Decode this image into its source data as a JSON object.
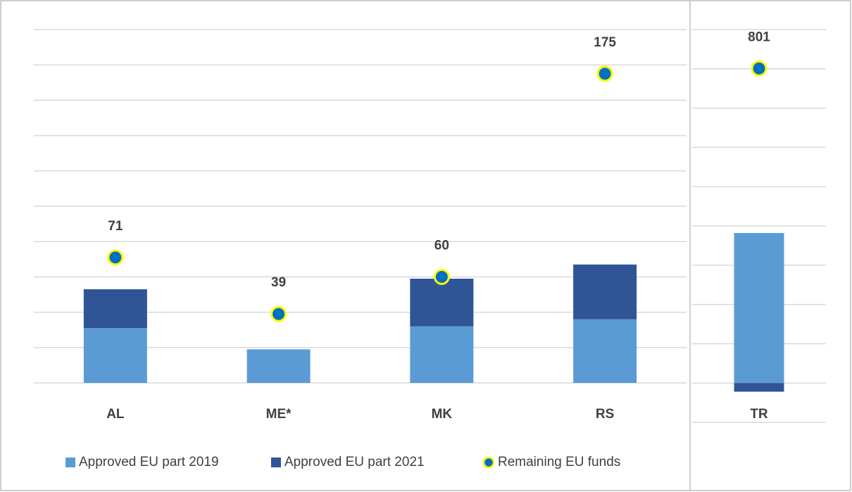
{
  "chart_data": [
    {
      "type": "bar",
      "categories": [
        "AL",
        "ME*",
        "MK",
        "RS"
      ],
      "series": [
        {
          "name": "Approved EU part 2019",
          "color": "#5b9bd5",
          "values": [
            31,
            19,
            32,
            36
          ]
        },
        {
          "name": "Approved EU part 2021",
          "color": "#2f5597",
          "values": [
            22,
            0,
            27,
            31
          ]
        },
        {
          "name": "Remaining EU funds",
          "type": "scatter",
          "color": "#0070c0",
          "values": [
            71,
            39,
            60,
            175
          ]
        }
      ],
      "ylim": [
        0,
        200
      ],
      "yticks": [
        0,
        20,
        40,
        60,
        80,
        100,
        120,
        140,
        160,
        180,
        200
      ],
      "grid": true
    },
    {
      "type": "bar",
      "categories": [
        "TR"
      ],
      "series": [
        {
          "color": "#5b9bd5",
          "values": [
            382
          ]
        },
        {
          "color": "#2f5597",
          "values": [
            -22
          ]
        },
        {
          "type": "scatter",
          "color": "#0070c0",
          "values": [
            801
          ]
        }
      ],
      "ylim": [
        -100,
        900
      ],
      "yticks": [
        -100,
        0,
        100,
        200,
        300,
        400,
        500,
        600,
        700,
        800,
        900
      ],
      "grid": true
    }
  ]
}
